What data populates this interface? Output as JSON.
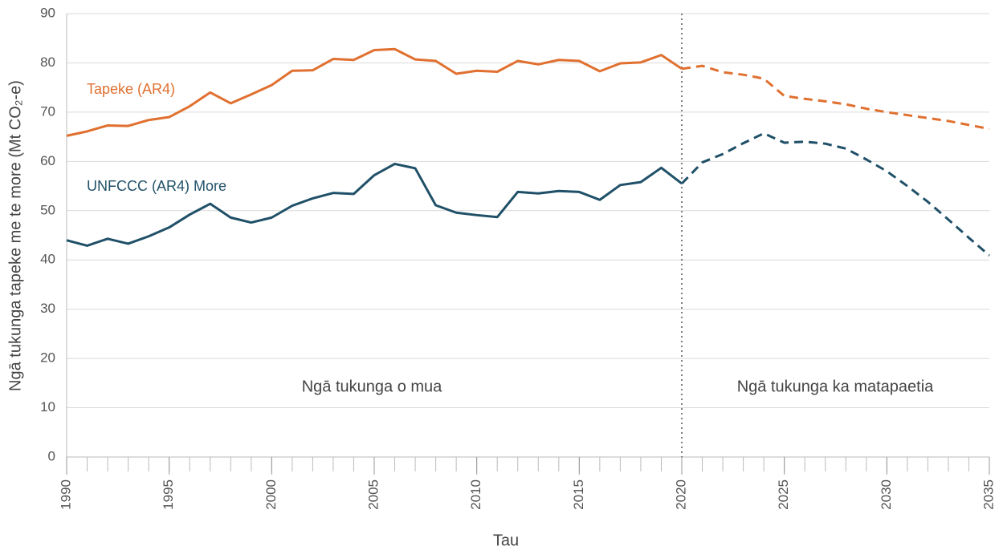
{
  "chart_data": {
    "type": "line",
    "x": [
      1990,
      1991,
      1992,
      1993,
      1994,
      1995,
      1996,
      1997,
      1998,
      1999,
      2000,
      2001,
      2002,
      2003,
      2004,
      2005,
      2006,
      2007,
      2008,
      2009,
      2010,
      2011,
      2012,
      2013,
      2014,
      2015,
      2016,
      2017,
      2018,
      2019,
      2020,
      2021,
      2022,
      2023,
      2024,
      2025,
      2026,
      2027,
      2028,
      2029,
      2030,
      2031,
      2032,
      2033,
      2034,
      2035
    ],
    "xlabel": "Tau",
    "ylabel": "Ngā tukunga tapeke me te more (Mt CO₂-e)",
    "xlim": [
      1990,
      2035
    ],
    "xticks": [
      1990,
      1995,
      2000,
      2005,
      2010,
      2015,
      2020,
      2025,
      2030,
      2035
    ],
    "ylim": [
      0,
      90
    ],
    "yticks": [
      0,
      10,
      20,
      30,
      40,
      50,
      60,
      70,
      80,
      90
    ],
    "grid": true,
    "divider_x": 2020,
    "annotations": [
      "Ngā tukunga o mua",
      "Ngā tukunga ka matapaetia"
    ],
    "series": [
      {
        "name": "Tapeke (AR4)",
        "color": "#e07030",
        "values": [
          65.2,
          66.1,
          67.3,
          67.2,
          68.4,
          69.0,
          71.2,
          74.0,
          71.8,
          73.6,
          75.5,
          78.4,
          78.5,
          80.8,
          80.6,
          82.6,
          82.8,
          80.7,
          80.4,
          77.8,
          78.4,
          78.2,
          80.4,
          79.7,
          80.6,
          80.4,
          78.3,
          79.9,
          80.1,
          81.6,
          78.8,
          null,
          null,
          null,
          null,
          null,
          null,
          null,
          null,
          null,
          null,
          null,
          null,
          null,
          null,
          null
        ],
        "projected_values": [
          null,
          null,
          null,
          null,
          null,
          null,
          null,
          null,
          null,
          null,
          null,
          null,
          null,
          null,
          null,
          null,
          null,
          null,
          null,
          null,
          null,
          null,
          null,
          null,
          null,
          null,
          null,
          null,
          null,
          null,
          78.8,
          79.4,
          78.1,
          77.6,
          76.8,
          73.3,
          72.7,
          72.2,
          71.6,
          70.7,
          70.0,
          69.4,
          68.8,
          68.2,
          67.4,
          66.6
        ]
      },
      {
        "name": "UNFCCC (AR4) More",
        "color": "#1f5068",
        "values": [
          44.0,
          42.9,
          44.3,
          43.3,
          44.8,
          46.6,
          49.2,
          51.4,
          48.6,
          47.6,
          48.6,
          51.0,
          52.5,
          53.6,
          53.4,
          57.2,
          59.5,
          58.6,
          51.1,
          49.6,
          49.1,
          48.7,
          53.8,
          53.5,
          54.0,
          53.8,
          52.2,
          55.2,
          55.8,
          58.7,
          55.5,
          null,
          null,
          null,
          null,
          null,
          null,
          null,
          null,
          null,
          null,
          null,
          null,
          null,
          null,
          null
        ],
        "projected_values": [
          null,
          null,
          null,
          null,
          null,
          null,
          null,
          null,
          null,
          null,
          null,
          null,
          null,
          null,
          null,
          null,
          null,
          null,
          null,
          null,
          null,
          null,
          null,
          null,
          null,
          null,
          null,
          null,
          null,
          null,
          55.5,
          59.8,
          61.5,
          63.7,
          65.7,
          63.8,
          64.0,
          63.6,
          62.6,
          60.4,
          58.0,
          55.0,
          51.8,
          48.2,
          44.5,
          40.9
        ]
      }
    ]
  }
}
